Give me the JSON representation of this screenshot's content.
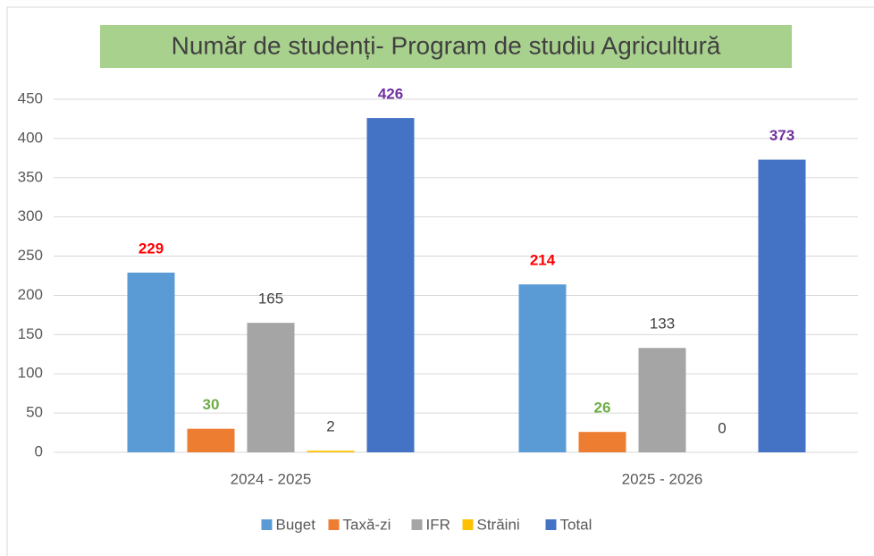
{
  "chart_data": {
    "type": "bar",
    "title": "Număr de studenți- Program de studiu Agricultură",
    "categories": [
      "2024 - 2025",
      "2025 - 2026"
    ],
    "series": [
      {
        "name": "Buget",
        "color": "#5b9bd5",
        "label_color": "#ff0000",
        "label_bold": true,
        "values": [
          229,
          214
        ]
      },
      {
        "name": "Taxă-zi",
        "color": "#ed7d31",
        "label_color": "#70ad47",
        "label_bold": true,
        "values": [
          30,
          26
        ]
      },
      {
        "name": "IFR",
        "color": "#a5a5a5",
        "label_color": "#404040",
        "label_bold": false,
        "values": [
          165,
          133
        ]
      },
      {
        "name": "Străini",
        "color": "#ffc000",
        "label_color": "#404040",
        "label_bold": false,
        "values": [
          2,
          0
        ]
      },
      {
        "name": "Total",
        "color": "#4472c4",
        "label_color": "#7030a0",
        "label_bold": true,
        "values": [
          426,
          373
        ]
      }
    ],
    "ylim": [
      0,
      450
    ],
    "yticks": [
      0,
      50,
      100,
      150,
      200,
      250,
      300,
      350,
      400,
      450
    ],
    "grid": true,
    "legend": "bottom"
  }
}
